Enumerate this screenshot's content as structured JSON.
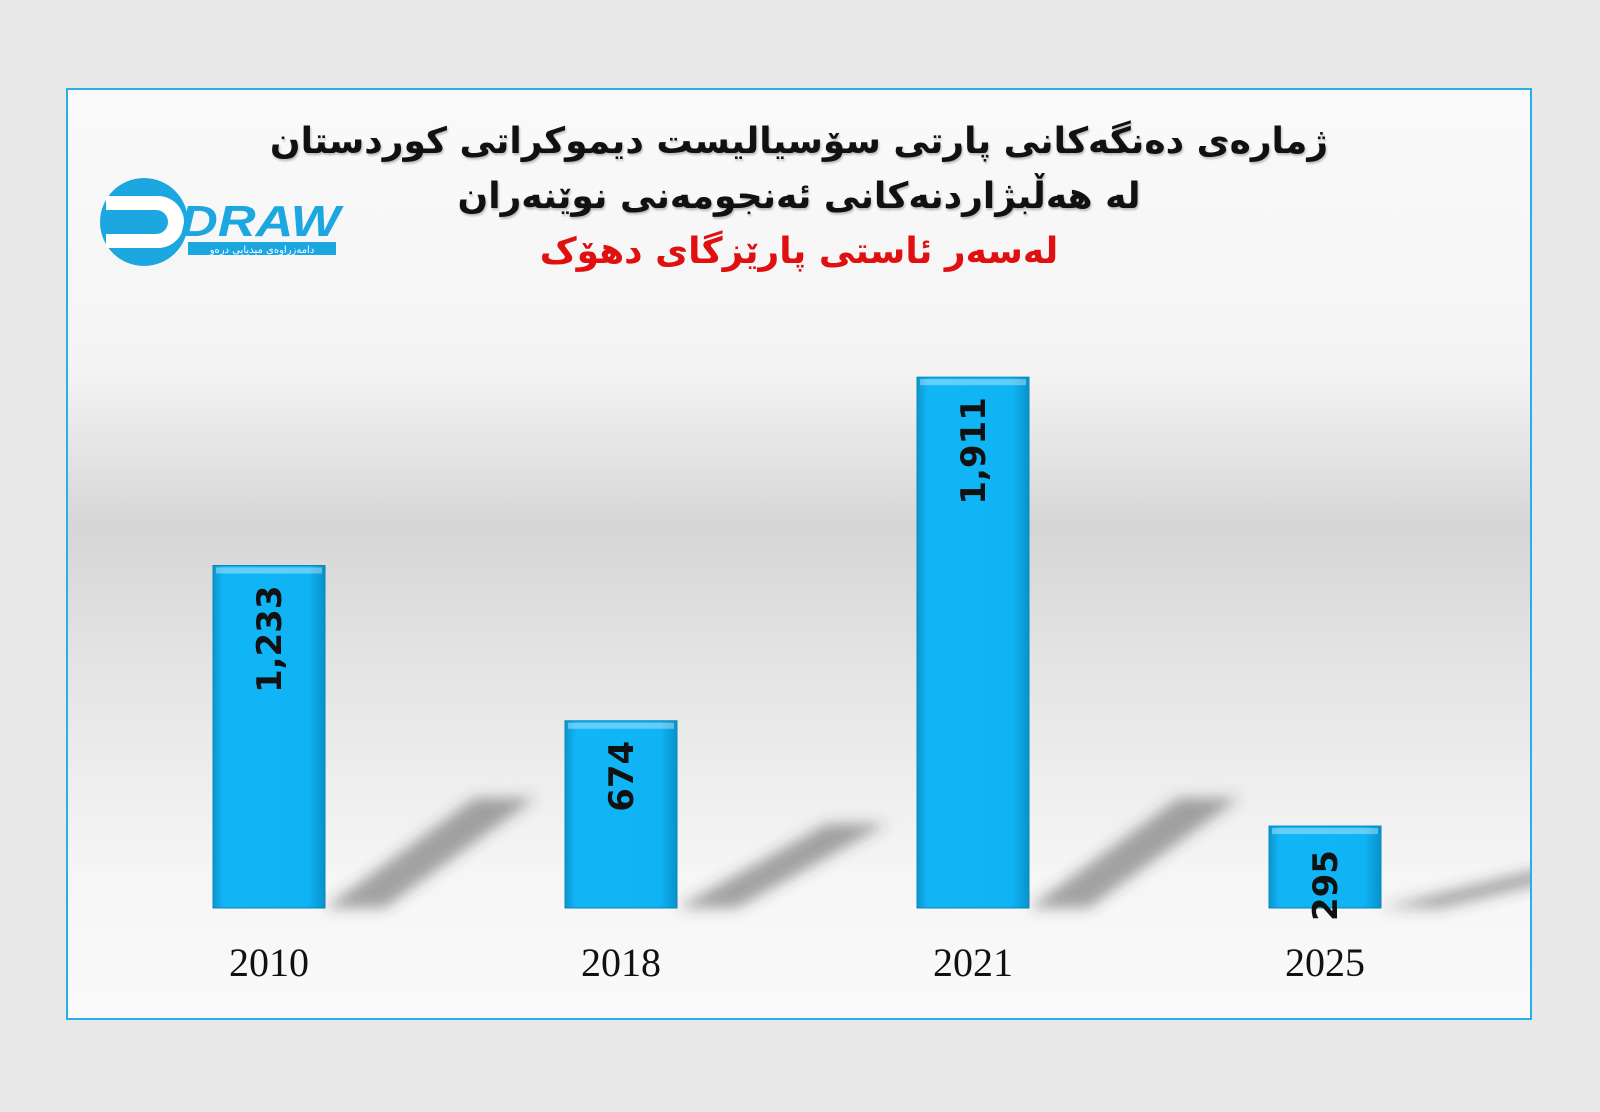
{
  "logo": {
    "wordmark": "DRAW",
    "tagline": "دامەزراوەی میدیایی درەو",
    "colors": {
      "brand": "#1da7e0"
    }
  },
  "chart_data": {
    "type": "bar",
    "title": "ژمارەی دەنگەکانی پارتی سۆسیالیست دیموکراتی کوردستان",
    "subtitle": "لە هەڵبژاردنەکانی ئەنجومەنی نوێنەران",
    "subtitle2": "لەسەر ئاستی پارێزگای دهۆک",
    "categories": [
      "2010",
      "2018",
      "2021",
      "2025"
    ],
    "values": [
      1233,
      674,
      1911,
      295
    ],
    "value_labels": [
      "1,233",
      "674",
      "1,911",
      "295"
    ],
    "ylim": [
      0,
      2700
    ],
    "grid": false,
    "legend": "none",
    "colors": {
      "bar": "#0fb4f5",
      "title_accent": "#e01010"
    }
  }
}
